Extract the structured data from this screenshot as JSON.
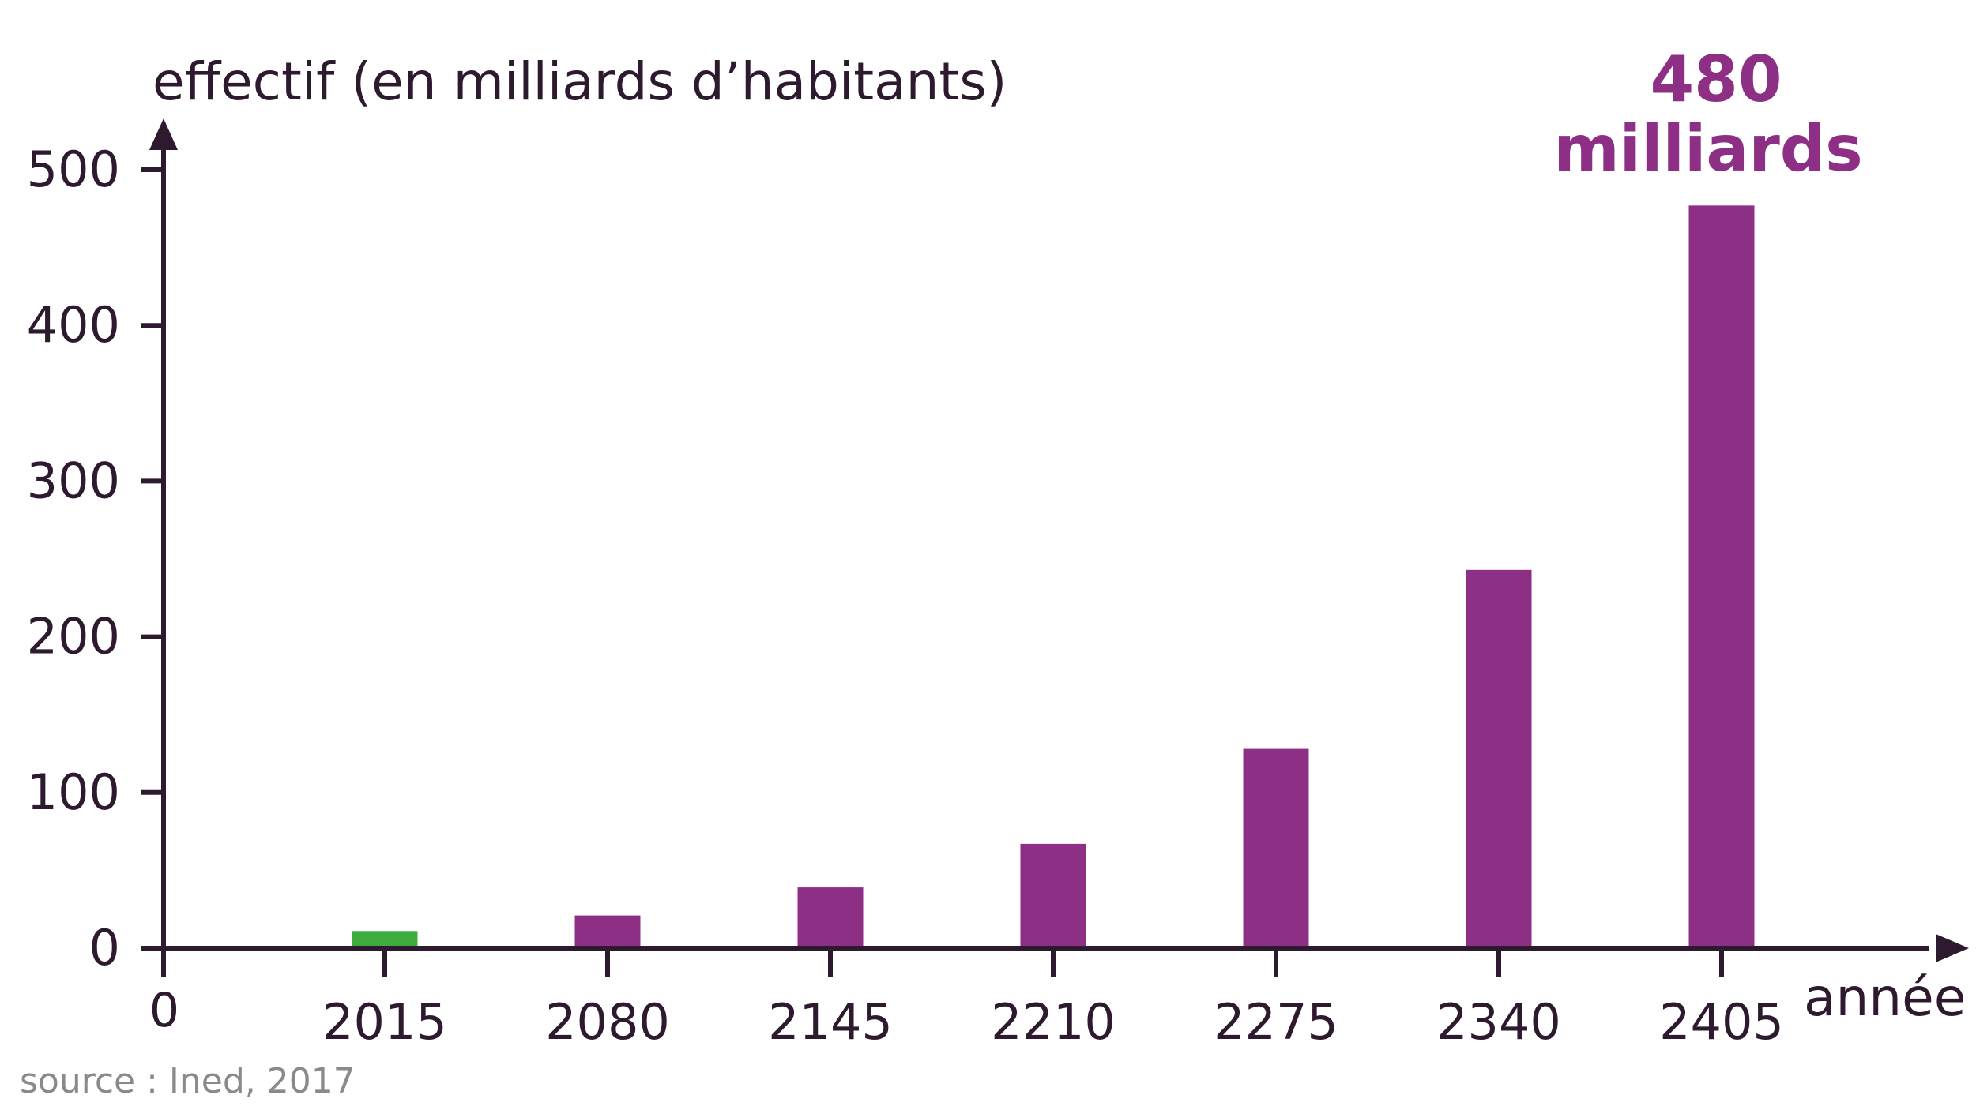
{
  "chart_data": {
    "type": "bar",
    "ylabel": "effectif (en milliards d’habitants)",
    "xlabel": "année",
    "categories": [
      "2015",
      "2080",
      "2145",
      "2210",
      "2275",
      "2340",
      "2405"
    ],
    "values": [
      11,
      21,
      39,
      67,
      128,
      243,
      477
    ],
    "colors": [
      "#3cac3c",
      "#8e2f86",
      "#8e2f86",
      "#8e2f86",
      "#8e2f86",
      "#8e2f86",
      "#8e2f86"
    ],
    "yticks": [
      "0",
      "100",
      "200",
      "300",
      "400",
      "500"
    ],
    "ylim": [
      0,
      500
    ],
    "origin_label": "0",
    "annotation": {
      "line1": "480",
      "line2": "milliards",
      "color": "#8e2f86"
    },
    "source": "source : Ined, 2017",
    "axis_color": "#2e1a2e"
  }
}
